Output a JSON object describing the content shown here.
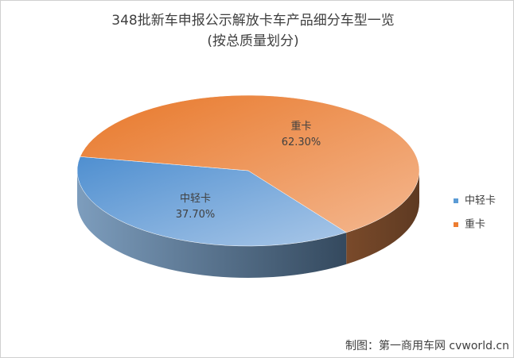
{
  "chart_data": {
    "type": "pie",
    "title": "348批新车申报公示解放卡车产品细分车型一览",
    "subtitle": "(按总质量划分)",
    "categories": [
      "中轻卡",
      "重卡"
    ],
    "values": [
      37.7,
      62.3
    ],
    "value_labels": [
      "37.70%",
      "62.30%"
    ],
    "colors": [
      "#5b9bd5",
      "#ed7d31"
    ],
    "legend": "right",
    "source": "制图：第一商用车网 cvworld.cn"
  }
}
